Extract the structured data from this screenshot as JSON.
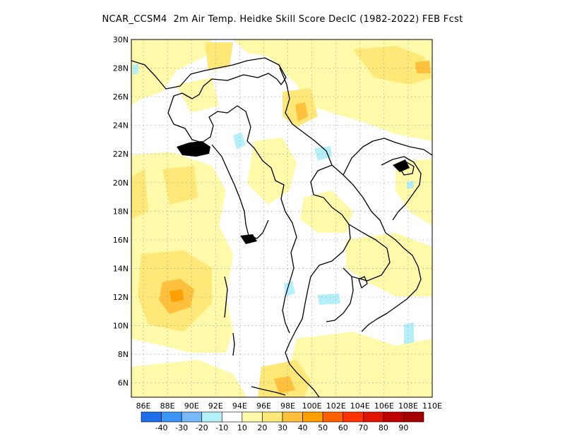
{
  "title": "NCAR_CCSM4  2m Air Temp. Heidke Skill Score DecIC (1982-2022) FEB Fcst",
  "map": {
    "lon_range": [
      85,
      110
    ],
    "lat_range": [
      5,
      30
    ],
    "lon_ticks": [
      "86E",
      "88E",
      "90E",
      "92E",
      "94E",
      "96E",
      "98E",
      "100E",
      "102E",
      "104E",
      "106E",
      "108E",
      "110E"
    ],
    "lat_ticks": [
      "30N",
      "28N",
      "26N",
      "24N",
      "22N",
      "20N",
      "18N",
      "16N",
      "14N",
      "12N",
      "10N",
      "8N",
      "6N"
    ],
    "grid": "dotted"
  },
  "colorbar": {
    "colors": [
      "#1e6eeb",
      "#3c96f5",
      "#78b9fa",
      "#b4f0fa",
      "#ffffff",
      "#fffaaa",
      "#ffe878",
      "#ffc03c",
      "#ffa000",
      "#ff6000",
      "#ff3200",
      "#e11400",
      "#c00000",
      "#a50000"
    ],
    "labels": [
      "-40",
      "-30",
      "-20",
      "-10",
      "10",
      "20",
      "30",
      "40",
      "50",
      "60",
      "70",
      "80",
      "90"
    ]
  }
}
